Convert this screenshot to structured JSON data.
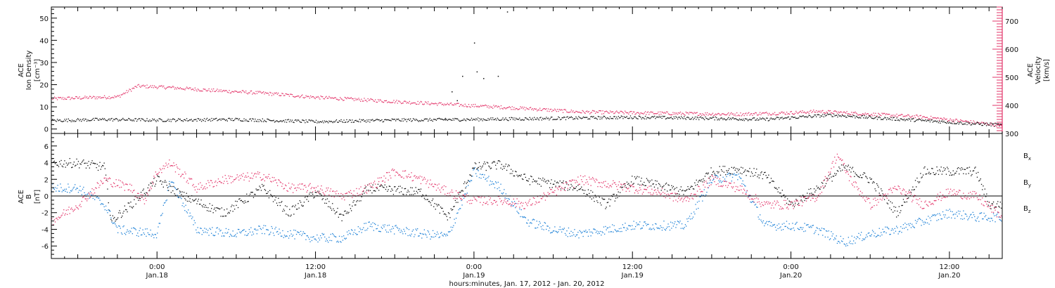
{
  "colors": {
    "black": "#111111",
    "blue": "#1a7fd6",
    "red": "#e3356a",
    "axis": "#000000"
  },
  "time_axis": {
    "label": "hours:minutes, Jan. 17, 2012 - Jan. 20, 2012",
    "ticks": [
      {
        "time": "0:00",
        "date": "Jan.18"
      },
      {
        "time": "12:00",
        "date": "Jan.18"
      },
      {
        "time": "0:00",
        "date": "Jan.19"
      },
      {
        "time": "12:00",
        "date": "Jan.19"
      },
      {
        "time": "0:00",
        "date": "Jan.20"
      },
      {
        "time": "12:00",
        "date": "Jan.20"
      }
    ]
  },
  "chart_data": [
    {
      "type": "scatter",
      "panel": "top",
      "left_axis": {
        "label_lines": [
          "ACE",
          "Ion Density",
          "[cm⁻³]"
        ],
        "ylim": [
          -2,
          55
        ],
        "ticks": [
          0,
          10,
          20,
          30,
          40,
          50
        ]
      },
      "right_axis": {
        "label_lines": [
          "ACE",
          "Velocity",
          "[km/s]"
        ],
        "ylim": [
          300,
          750
        ],
        "ticks": [
          300,
          400,
          500,
          600,
          700
        ]
      },
      "x_hours_range": [
        -8,
        64
      ],
      "density": {
        "color": "black",
        "keyframes": [
          [
            -8,
            4.0
          ],
          [
            -4,
            4.5
          ],
          [
            0,
            4.2
          ],
          [
            6,
            4.5
          ],
          [
            12,
            3.5
          ],
          [
            18,
            4.2
          ],
          [
            24,
            4.5
          ],
          [
            30,
            5.0
          ],
          [
            36,
            5.5
          ],
          [
            42,
            5.0
          ],
          [
            46,
            4.5
          ],
          [
            51,
            6.5
          ],
          [
            55,
            5.0
          ],
          [
            58,
            4.0
          ],
          [
            62,
            2.5
          ],
          [
            64,
            2.0
          ]
        ],
        "outliers": [
          [
            26.5,
            53
          ],
          [
            24.0,
            39
          ],
          [
            24.2,
            26
          ],
          [
            23.1,
            24
          ],
          [
            25.8,
            24
          ],
          [
            22.3,
            17
          ],
          [
            22.7,
            13
          ],
          [
            21.8,
            5
          ],
          [
            24.7,
            23
          ]
        ]
      },
      "velocity": {
        "color": "red",
        "keyframes": [
          [
            -8,
            425
          ],
          [
            -6,
            428
          ],
          [
            -3,
            432
          ],
          [
            -1.5,
            470
          ],
          [
            1,
            465
          ],
          [
            4,
            455
          ],
          [
            8,
            445
          ],
          [
            12,
            430
          ],
          [
            16,
            420
          ],
          [
            20,
            410
          ],
          [
            22,
            405
          ],
          [
            24,
            400
          ],
          [
            28,
            390
          ],
          [
            32,
            378
          ],
          [
            36,
            375
          ],
          [
            40,
            372
          ],
          [
            44,
            370
          ],
          [
            48,
            375
          ],
          [
            50,
            380
          ],
          [
            54,
            370
          ],
          [
            58,
            360
          ],
          [
            60,
            350
          ],
          [
            62,
            340
          ],
          [
            64,
            330
          ]
        ]
      }
    },
    {
      "type": "scatter",
      "panel": "bottom",
      "left_axis": {
        "label_lines": [
          "ACE",
          "B",
          "[nT]"
        ],
        "ylim": [
          -7.5,
          7.5
        ],
        "ticks": [
          -6,
          -4,
          -2,
          0,
          2,
          4,
          6
        ]
      },
      "zero_line": true,
      "x_hours_range": [
        -8,
        64
      ],
      "series": [
        {
          "name": "Bx",
          "label": "B",
          "sub": "x",
          "color": "black",
          "keyframes": [
            [
              -8,
              4
            ],
            [
              -6,
              4
            ],
            [
              -4,
              3.5
            ],
            [
              -3.5,
              -3
            ],
            [
              -2,
              -1
            ],
            [
              0,
              2
            ],
            [
              2,
              0
            ],
            [
              5,
              -2
            ],
            [
              8,
              1
            ],
            [
              10,
              -2
            ],
            [
              12,
              0.5
            ],
            [
              14,
              -2.5
            ],
            [
              16,
              1
            ],
            [
              20,
              0.5
            ],
            [
              22,
              -2.5
            ],
            [
              24,
              3.5
            ],
            [
              26,
              3.8
            ],
            [
              28,
              2
            ],
            [
              32,
              1
            ],
            [
              34,
              -1
            ],
            [
              36,
              2
            ],
            [
              40,
              0.5
            ],
            [
              42,
              3
            ],
            [
              44,
              3.3
            ],
            [
              46,
              2.5
            ],
            [
              48,
              -1
            ],
            [
              50,
              1
            ],
            [
              52,
              3.5
            ],
            [
              54,
              2
            ],
            [
              56,
              -2
            ],
            [
              58,
              3
            ],
            [
              60,
              3
            ],
            [
              62,
              3
            ],
            [
              63,
              -1
            ],
            [
              64,
              -1
            ]
          ]
        },
        {
          "name": "By",
          "label": "B",
          "sub": "y",
          "color": "blue",
          "keyframes": [
            [
              -8,
              1
            ],
            [
              -6,
              1
            ],
            [
              -4,
              -1
            ],
            [
              -3,
              -4
            ],
            [
              0,
              -4.5
            ],
            [
              1,
              2
            ],
            [
              3,
              -4
            ],
            [
              6,
              -4.5
            ],
            [
              8,
              -4
            ],
            [
              10,
              -4.5
            ],
            [
              12,
              -5
            ],
            [
              14,
              -5
            ],
            [
              16,
              -3.5
            ],
            [
              18,
              -4
            ],
            [
              20,
              -4.5
            ],
            [
              22,
              -4.8
            ],
            [
              24,
              3
            ],
            [
              26,
              1
            ],
            [
              28,
              -3
            ],
            [
              30,
              -4
            ],
            [
              32,
              -4.5
            ],
            [
              34,
              -4
            ],
            [
              36,
              -3.5
            ],
            [
              38,
              -3.5
            ],
            [
              40,
              -3.5
            ],
            [
              42,
              2
            ],
            [
              44,
              2.5
            ],
            [
              46,
              -3.5
            ],
            [
              48,
              -3.5
            ],
            [
              50,
              -4
            ],
            [
              52,
              -5.5
            ],
            [
              54,
              -4.5
            ],
            [
              56,
              -4
            ],
            [
              58,
              -3
            ],
            [
              60,
              -2
            ],
            [
              62,
              -2.5
            ],
            [
              64,
              -2.5
            ]
          ]
        },
        {
          "name": "Bz",
          "label": "B",
          "sub": "z",
          "color": "red",
          "keyframes": [
            [
              -8,
              -3
            ],
            [
              -6,
              -1
            ],
            [
              -4,
              2
            ],
            [
              -2,
              1
            ],
            [
              -1,
              -0.5
            ],
            [
              0,
              3
            ],
            [
              1,
              4
            ],
            [
              3,
              1
            ],
            [
              5,
              2
            ],
            [
              8,
              2.5
            ],
            [
              10,
              1
            ],
            [
              12,
              1
            ],
            [
              14,
              0
            ],
            [
              16,
              1
            ],
            [
              18,
              3
            ],
            [
              20,
              2
            ],
            [
              22,
              0.5
            ],
            [
              24,
              -0.5
            ],
            [
              26,
              -0.5
            ],
            [
              28,
              -1
            ],
            [
              32,
              2
            ],
            [
              36,
              1
            ],
            [
              38,
              0.5
            ],
            [
              40,
              -0.5
            ],
            [
              42,
              2
            ],
            [
              44,
              1
            ],
            [
              46,
              -1
            ],
            [
              48,
              -1
            ],
            [
              50,
              0
            ],
            [
              51.5,
              5
            ],
            [
              52.5,
              2
            ],
            [
              54,
              -1
            ],
            [
              56,
              1
            ],
            [
              58,
              -1
            ],
            [
              60,
              0.5
            ],
            [
              62,
              0
            ],
            [
              64,
              -2.5
            ]
          ]
        }
      ]
    }
  ]
}
